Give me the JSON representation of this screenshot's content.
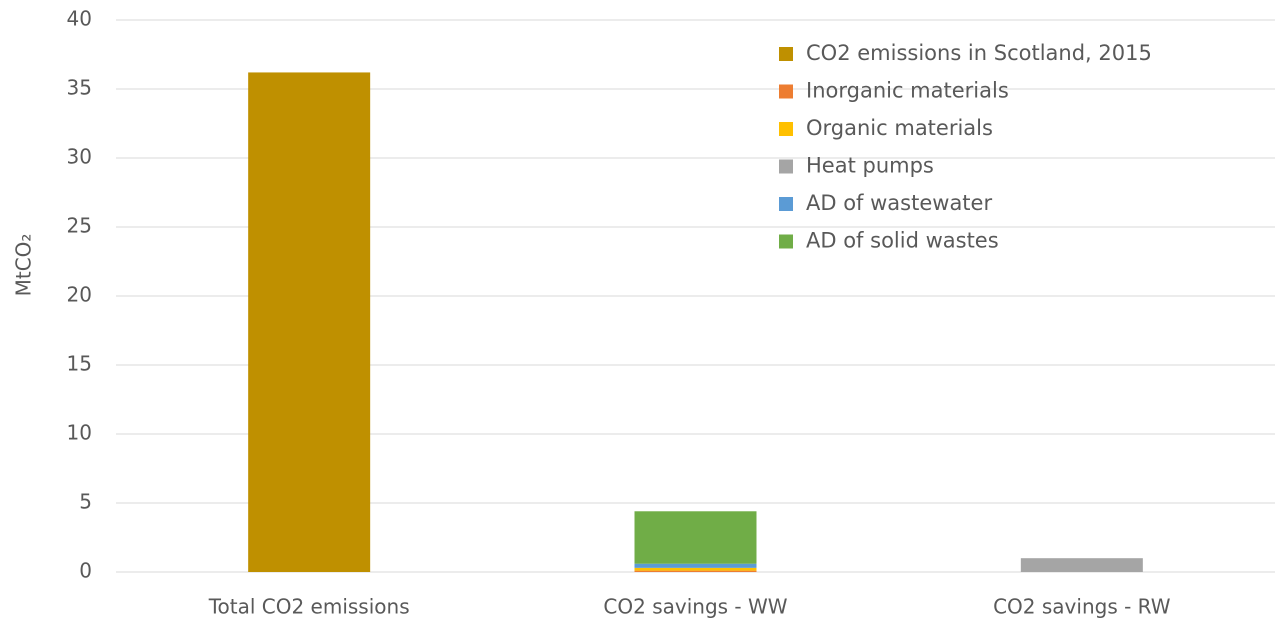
{
  "chart_data": {
    "type": "stacked_bar",
    "y_label": "MtCO₂",
    "categories": [
      "Total CO2 emissions",
      "CO2 savings - WW",
      "CO2 savings - RW"
    ],
    "series": [
      {
        "name": "CO2 emissions in Scotland, 2015",
        "color": "#bf9000",
        "values": [
          36.2,
          0,
          0
        ]
      },
      {
        "name": "Inorganic materials",
        "color": "#ed7d31",
        "values": [
          0,
          0.1,
          0
        ]
      },
      {
        "name": "Organic materials",
        "color": "#ffc000",
        "values": [
          0,
          0.2,
          0
        ]
      },
      {
        "name": "Heat pumps",
        "color": "#a5a5a5",
        "values": [
          0,
          0,
          1.0
        ]
      },
      {
        "name": "AD of wastewater",
        "color": "#5b9bd5",
        "values": [
          0,
          0.3,
          0
        ]
      },
      {
        "name": "AD of solid wastes",
        "color": "#70ad47",
        "values": [
          0,
          3.8,
          0
        ]
      }
    ],
    "ylim": [
      0,
      40
    ],
    "yticks": [
      0,
      5,
      10,
      15,
      20,
      25,
      30,
      35,
      40
    ],
    "grid": true,
    "legend": "upper right"
  }
}
